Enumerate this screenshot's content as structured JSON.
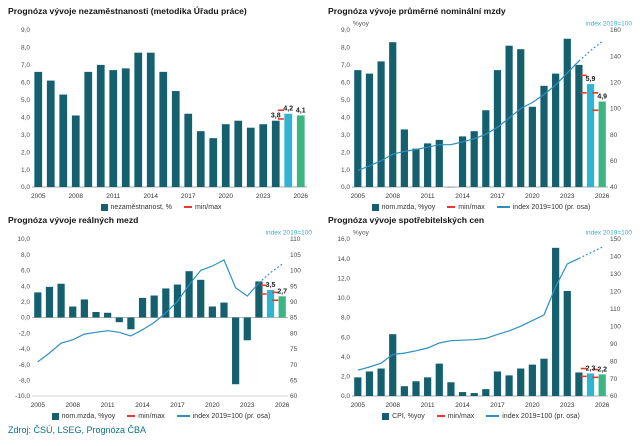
{
  "page": {
    "source_note": "Zdroj: ČSÚ, LSEG, Prognóza ČBA"
  },
  "colors": {
    "bar": "#14606f",
    "forecast1": "#2fb4d3",
    "forecast2": "#3cb583",
    "line": "#2e8fc0",
    "red": "#e8392f",
    "axis_text": "#4a4a4a",
    "right_label": "#35aed6",
    "annotation": "#1a1a1a",
    "source": "#0d7080"
  },
  "chart_data": [
    {
      "type": "bar",
      "title": "Prognóza vývoje nezaměstnanosti (metodika Úřadu práce)",
      "years_start": 2005,
      "categories": [
        2005,
        2006,
        2007,
        2008,
        2009,
        2010,
        2011,
        2012,
        2013,
        2014,
        2015,
        2016,
        2017,
        2018,
        2019,
        2020,
        2021,
        2022,
        2023,
        2024,
        2025,
        2026
      ],
      "values": [
        6.6,
        6.1,
        5.3,
        4.1,
        6.6,
        7.0,
        6.7,
        6.8,
        7.7,
        7.7,
        6.6,
        5.5,
        4.2,
        3.2,
        2.8,
        3.6,
        3.8,
        3.4,
        3.6,
        3.8,
        4.2,
        4.1
      ],
      "left_axis": {
        "min": 0,
        "max": 9,
        "step": 1
      },
      "forecast_years": [
        2025,
        2026
      ],
      "annotations": [
        {
          "year": 2024,
          "label": "3,8"
        },
        {
          "year": 2025,
          "label": "4,2"
        },
        {
          "year": 2026,
          "label": "4,1"
        }
      ],
      "minmax": [
        {
          "year": 2025,
          "min": 3.9,
          "max": 4.4
        }
      ],
      "legend": [
        {
          "marker": "square",
          "color_key": "bar",
          "label": "nezaměstnanost, %"
        },
        {
          "marker": "dash",
          "color_key": "red",
          "label": "min/max"
        }
      ]
    },
    {
      "type": "bar+line",
      "title": "Prognóza vývoje průměrné nominální mzdy",
      "years_start": 2005,
      "categories": [
        2005,
        2006,
        2007,
        2008,
        2009,
        2010,
        2011,
        2012,
        2013,
        2014,
        2015,
        2016,
        2017,
        2018,
        2019,
        2020,
        2021,
        2022,
        2023,
        2024,
        2025,
        2026
      ],
      "values": [
        6.7,
        6.5,
        7.2,
        8.3,
        3.3,
        2.2,
        2.5,
        2.7,
        -0.1,
        2.9,
        3.2,
        4.4,
        6.7,
        8.1,
        7.9,
        4.6,
        5.8,
        6.5,
        8.5,
        7.0,
        5.9,
        4.9
      ],
      "line": [
        52.7,
        56.1,
        60.1,
        65.1,
        67.2,
        68.7,
        70.4,
        72.3,
        72.4,
        74.5,
        76.9,
        80.3,
        85.7,
        92.7,
        100,
        104.6,
        110.7,
        117.9,
        127.3,
        136.2,
        144.2,
        151.3
      ],
      "line_solid_until_year": 2024,
      "left_axis": {
        "min": 0,
        "max": 9,
        "step": 1
      },
      "right_axis": {
        "min": 40,
        "max": 160,
        "step": 20,
        "label": "index 2019=100"
      },
      "left_unit": "%yoy",
      "forecast_years": [
        2025,
        2026
      ],
      "annotations": [
        {
          "year": 2025,
          "label": "5,9"
        },
        {
          "year": 2026,
          "label": "4,9"
        }
      ],
      "minmax": [
        {
          "year": 2025,
          "min": 5.4,
          "max": 6.4
        },
        {
          "year": 2026,
          "min": 4.4,
          "max": 5.4
        }
      ],
      "legend": [
        {
          "marker": "square",
          "color_key": "bar",
          "label": "nom.mzda, %yoy"
        },
        {
          "marker": "dash",
          "color_key": "red",
          "label": "min/max"
        },
        {
          "marker": "line",
          "color_key": "line",
          "label": "index 2019=100 (pr. osa)"
        }
      ]
    },
    {
      "type": "bar+line",
      "title": "Prognóza vývoje reálných mezd",
      "years_start": 2005,
      "categories": [
        2005,
        2006,
        2007,
        2008,
        2009,
        2010,
        2011,
        2012,
        2013,
        2014,
        2015,
        2016,
        2017,
        2018,
        2019,
        2020,
        2021,
        2022,
        2023,
        2024,
        2025,
        2026
      ],
      "values": [
        3.2,
        3.9,
        4.3,
        1.4,
        2.3,
        0.7,
        0.6,
        -0.6,
        -1.5,
        2.5,
        2.8,
        3.7,
        4.2,
        5.9,
        4.8,
        1.4,
        1.9,
        -8.5,
        -2.9,
        4.6,
        3.5,
        2.7
      ],
      "line": [
        70.9,
        73.7,
        76.8,
        77.9,
        79.7,
        80.3,
        80.8,
        80.3,
        79.1,
        81.1,
        83.4,
        86.5,
        90.1,
        95.4,
        100,
        101.4,
        103.3,
        94.5,
        91.8,
        96.0,
        99.3,
        102.0
      ],
      "line_solid_until_year": 2024,
      "left_axis": {
        "min": -10,
        "max": 10,
        "step": 2
      },
      "right_axis": {
        "min": 60,
        "max": 110,
        "step": 5,
        "label": "index 2019=100"
      },
      "forecast_years": [
        2025,
        2026
      ],
      "annotations": [
        {
          "year": 2025,
          "label": "3,5"
        },
        {
          "year": 2026,
          "label": "2,7"
        }
      ],
      "minmax": [
        {
          "year": 2025,
          "min": 3.0,
          "max": 4.1
        },
        {
          "year": 2026,
          "min": 2.2,
          "max": 3.2
        }
      ],
      "legend": [
        {
          "marker": "square",
          "color_key": "bar",
          "label": "nom.mzda, %yoy"
        },
        {
          "marker": "dash",
          "color_key": "red",
          "label": "min/max"
        },
        {
          "marker": "line",
          "color_key": "line",
          "label": "index 2019=100 (pr. osa)"
        }
      ]
    },
    {
      "type": "bar+line",
      "title": "Prognóza vývoje spotřebitelských cen",
      "years_start": 2005,
      "categories": [
        2005,
        2006,
        2007,
        2008,
        2009,
        2010,
        2011,
        2012,
        2013,
        2014,
        2015,
        2016,
        2017,
        2018,
        2019,
        2020,
        2021,
        2022,
        2023,
        2024,
        2025,
        2026
      ],
      "values": [
        1.9,
        2.5,
        2.8,
        6.3,
        1.0,
        1.5,
        1.9,
        3.3,
        1.4,
        0.4,
        0.3,
        0.7,
        2.5,
        2.1,
        2.8,
        3.2,
        3.8,
        15.1,
        10.7,
        2.4,
        2.3,
        2.2
      ],
      "line": [
        74.8,
        76.6,
        78.8,
        83.8,
        84.6,
        85.9,
        87.5,
        90.4,
        91.7,
        92.0,
        92.3,
        93.0,
        95.3,
        97.3,
        100,
        103.2,
        106.5,
        122.6,
        135.7,
        138.9,
        142.1,
        145.3
      ],
      "line_solid_until_year": 2024,
      "left_axis": {
        "min": 0,
        "max": 16,
        "step": 2
      },
      "right_axis": {
        "min": 60,
        "max": 150,
        "step": 10,
        "label": "index 2019=100"
      },
      "left_unit": "%yoy",
      "forecast_years": [
        2025,
        2026
      ],
      "annotations": [
        {
          "year": 2025,
          "label": "2,3"
        },
        {
          "year": 2026,
          "label": "2,2"
        }
      ],
      "minmax": [
        {
          "year": 2025,
          "min": 2.0,
          "max": 2.8
        },
        {
          "year": 2026,
          "min": 1.9,
          "max": 2.7
        }
      ],
      "legend": [
        {
          "marker": "square",
          "color_key": "bar",
          "label": "CPI, %yoy"
        },
        {
          "marker": "dash",
          "color_key": "red",
          "label": "min/max"
        },
        {
          "marker": "line",
          "color_key": "line",
          "label": "index 2019=100 (pr. osa)"
        }
      ]
    }
  ]
}
